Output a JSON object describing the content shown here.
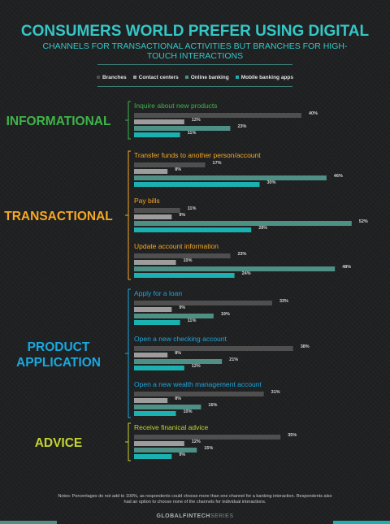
{
  "header": {
    "title": "CONSUMERS WORLD PREFER USING DIGITAL",
    "subtitle": "CHANNELS FOR TRANSACTIONAL ACTIVITIES BUT BRANCHES FOR HIGH-TOUCH INTERACTIONS"
  },
  "footer": {
    "note": "Notes: Percentages do not add to 100%, as respondents could choose more than one channel for a banking interaction. Respondents also had an option to choose none of the channels for individual interactions.",
    "brand_prefix": "GLOBALFINTECH",
    "brand_suffix": "SERIES"
  },
  "colors": {
    "branches": "#4f4f4f",
    "contact_centers": "#9d9d9d",
    "online_banking": "#4e8f86",
    "mobile_banking_apps": "#1ab1b0",
    "informational": "#3eb54a",
    "transactional": "#f7a823",
    "product_application": "#1aa8df",
    "advice": "#c5d52e",
    "value_label": "#d4d4d4"
  },
  "chart_data": {
    "type": "bar",
    "orientation": "horizontal",
    "unit": "%",
    "xlim": [
      0,
      52
    ],
    "series": [
      {
        "name": "Branches",
        "color_key": "branches"
      },
      {
        "name": "Contact centers",
        "color_key": "contact_centers"
      },
      {
        "name": "Online banking",
        "color_key": "online_banking"
      },
      {
        "name": "Mobile banking apps",
        "color_key": "mobile_banking_apps"
      }
    ],
    "groups": [
      {
        "label": "INFORMATIONAL",
        "color_key": "informational",
        "categories": [
          {
            "label": "Inquire about new products",
            "values": [
              40,
              12,
              23,
              11
            ]
          }
        ]
      },
      {
        "label": "TRANSACTIONAL",
        "color_key": "transactional",
        "categories": [
          {
            "label": "Transfer funds to another person/account",
            "values": [
              17,
              8,
              46,
              30
            ]
          },
          {
            "label": "Pay bills",
            "values": [
              11,
              9,
              52,
              28
            ]
          },
          {
            "label": "Update account information",
            "values": [
              23,
              10,
              48,
              24
            ]
          }
        ]
      },
      {
        "label": "PRODUCT APPLICATION",
        "color_key": "product_application",
        "categories": [
          {
            "label": "Apply for a loan",
            "values": [
              33,
              9,
              19,
              11
            ]
          },
          {
            "label": "Open a new checking account",
            "values": [
              38,
              8,
              21,
              12
            ]
          },
          {
            "label": "Open a new wealth management account",
            "values": [
              31,
              8,
              16,
              10
            ]
          }
        ]
      },
      {
        "label": "ADVICE",
        "color_key": "advice",
        "categories": [
          {
            "label": "Receive finanical advice",
            "values": [
              35,
              12,
              15,
              9
            ]
          }
        ]
      }
    ]
  }
}
